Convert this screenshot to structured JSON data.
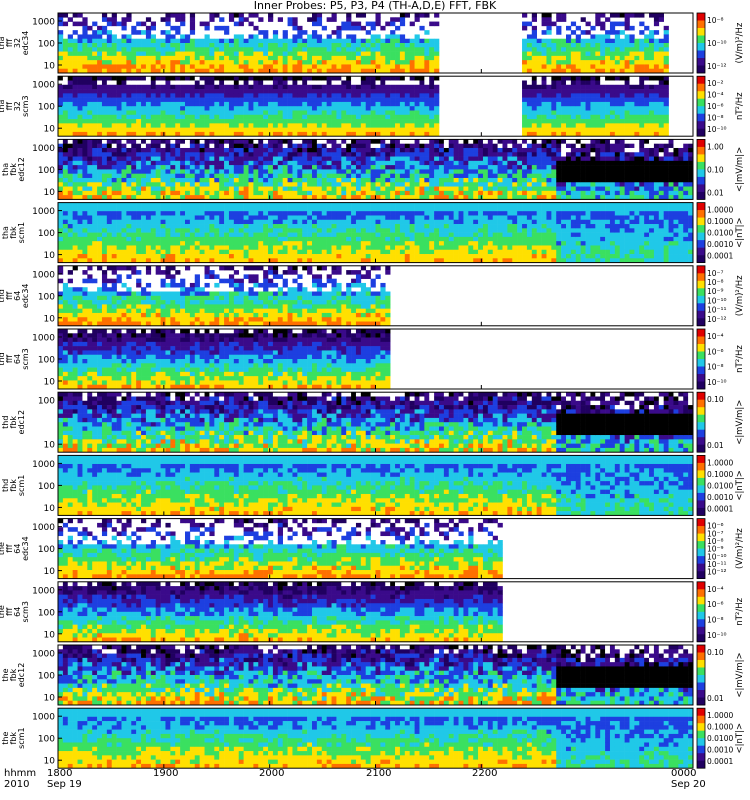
{
  "title": "Inner Probes: P5, P3, P4 (TH-A,D,E) FFT, FBK",
  "colors": {
    "white": "#ffffff",
    "black": "#000000",
    "dark_purple": "#200060",
    "purple": "#3a0a8a",
    "blue": "#1d3fe0",
    "cyan": "#20c8e8",
    "green": "#3ae060",
    "yellow": "#ffe000",
    "orange": "#ff7000",
    "red": "#e00000"
  },
  "x_axis": {
    "corner_top": "hhmm",
    "corner_bottom": "2010",
    "ticks": [
      "1800",
      "1900",
      "2000",
      "2100",
      "2200",
      "0000"
    ],
    "dates": [
      "Sep 19",
      "Sep 20"
    ]
  },
  "chart_data": [
    {
      "type": "heatmap",
      "label": [
        "tha",
        "fff",
        "32",
        "edc34"
      ],
      "yticks": [
        "1000",
        "100",
        "10"
      ],
      "colorbar_ticks": [
        "10⁻⁸",
        "10⁻¹⁰",
        "10⁻¹²"
      ],
      "colorbar_unit": "(V/m)²/Hz",
      "coverage": [
        [
          0.0,
          0.6
        ],
        [
          0.73,
          0.96
        ]
      ],
      "style": "spiky"
    },
    {
      "type": "heatmap",
      "label": [
        "tha",
        "fff",
        "32",
        "scm3"
      ],
      "yticks": [
        "1000",
        "100",
        "10"
      ],
      "colorbar_ticks": [
        "10⁻²",
        "10⁻⁴",
        "10⁻⁶",
        "10⁻⁸",
        "10⁻¹⁰"
      ],
      "colorbar_unit": "nT²/Hz",
      "coverage": [
        [
          0.0,
          0.6
        ],
        [
          0.73,
          0.96
        ]
      ],
      "style": "banded"
    },
    {
      "type": "heatmap",
      "label": [
        "tha",
        "fbk",
        "edc12"
      ],
      "yticks": [
        "1000",
        "100",
        "10"
      ],
      "colorbar_ticks": [
        "1.00",
        "0.10",
        "0.01"
      ],
      "colorbar_unit": "<|mV/m|>",
      "coverage": [
        [
          0.0,
          1.0
        ]
      ],
      "style": "fbk_e"
    },
    {
      "type": "heatmap",
      "label": [
        "tha",
        "fbk",
        "scm1"
      ],
      "yticks": [
        "1000",
        "100",
        "10"
      ],
      "colorbar_ticks": [
        "1.0000",
        "0.1000",
        "0.0100",
        "0.0010",
        "0.0001"
      ],
      "colorbar_unit": "<|nT|>",
      "coverage": [
        [
          0.0,
          1.0
        ]
      ],
      "style": "fbk_b"
    },
    {
      "type": "heatmap",
      "label": [
        "thd",
        "fff",
        "64",
        "edc34"
      ],
      "yticks": [
        "1000",
        "100",
        "10"
      ],
      "colorbar_ticks": [
        "10⁻⁷",
        "10⁻⁸",
        "10⁻⁹",
        "10⁻¹⁰",
        "10⁻¹¹",
        "10⁻¹²"
      ],
      "colorbar_unit": "(V/m)²/Hz",
      "coverage": [
        [
          0.0,
          0.52
        ]
      ],
      "style": "spiky"
    },
    {
      "type": "heatmap",
      "label": [
        "thd",
        "fff",
        "64",
        "scm3"
      ],
      "yticks": [
        "1000",
        "100",
        "10"
      ],
      "colorbar_ticks": [
        "10⁻⁴",
        "10⁻⁶",
        "10⁻⁸",
        "10⁻¹⁰"
      ],
      "colorbar_unit": "nT²/Hz",
      "coverage": [
        [
          0.0,
          0.52
        ]
      ],
      "style": "noisy"
    },
    {
      "type": "heatmap",
      "label": [
        "thd",
        "fbk",
        "edc12"
      ],
      "yticks": [
        "100",
        "10"
      ],
      "colorbar_ticks": [
        "0.10",
        "0.01"
      ],
      "colorbar_unit": "<|mV/m|>",
      "coverage": [
        [
          0.0,
          1.0
        ]
      ],
      "style": "fbk_e"
    },
    {
      "type": "heatmap",
      "label": [
        "thd",
        "fbk",
        "scm1"
      ],
      "yticks": [
        "1000",
        "100",
        "10"
      ],
      "colorbar_ticks": [
        "1.0000",
        "0.1000",
        "0.0100",
        "0.0010",
        "0.0001"
      ],
      "colorbar_unit": "<|nT|>",
      "coverage": [
        [
          0.0,
          1.0
        ]
      ],
      "style": "fbk_b"
    },
    {
      "type": "heatmap",
      "label": [
        "the",
        "fff",
        "64",
        "edc34"
      ],
      "yticks": [
        "1000",
        "100",
        "10"
      ],
      "colorbar_ticks": [
        "10⁻⁶",
        "10⁻⁷",
        "10⁻⁸",
        "10⁻⁹",
        "10⁻¹⁰",
        "10⁻¹¹",
        "10⁻¹²"
      ],
      "colorbar_unit": "(V/m)²/Hz",
      "coverage": [
        [
          0.0,
          0.7
        ]
      ],
      "style": "spiky"
    },
    {
      "type": "heatmap",
      "label": [
        "the",
        "fff",
        "64",
        "scm3"
      ],
      "yticks": [
        "1000",
        "100",
        "10"
      ],
      "colorbar_ticks": [
        "10⁻⁴",
        "10⁻⁶",
        "10⁻⁸",
        "10⁻¹⁰"
      ],
      "colorbar_unit": "nT²/Hz",
      "coverage": [
        [
          0.0,
          0.7
        ]
      ],
      "style": "noisy"
    },
    {
      "type": "heatmap",
      "label": [
        "the",
        "fbk",
        "edc12"
      ],
      "yticks": [
        "1000",
        "100",
        "10"
      ],
      "colorbar_ticks": [
        "0.10",
        "0.01"
      ],
      "colorbar_unit": "<|mV/m|>",
      "coverage": [
        [
          0.0,
          1.0
        ]
      ],
      "style": "fbk_e"
    },
    {
      "type": "heatmap",
      "label": [
        "the",
        "fbk",
        "scm1"
      ],
      "yticks": [
        "1000",
        "100",
        "10"
      ],
      "colorbar_ticks": [
        "1.0000",
        "0.1000",
        "0.0100",
        "0.0010",
        "0.0001"
      ],
      "colorbar_unit": "<|nT|>",
      "coverage": [
        [
          0.0,
          1.0
        ]
      ],
      "style": "fbk_b"
    }
  ]
}
